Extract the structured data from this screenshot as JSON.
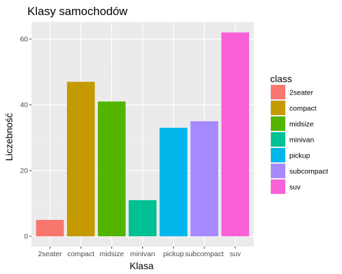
{
  "chart_data": {
    "type": "bar",
    "title": "Klasy samochodów",
    "xlabel": "Klasa",
    "ylabel": "Liczebność",
    "categories": [
      "2seater",
      "compact",
      "midsize",
      "minivan",
      "pickup",
      "subcompact",
      "suv"
    ],
    "values": [
      5,
      47,
      41,
      11,
      33,
      35,
      62
    ],
    "colors": [
      "#F8766D",
      "#C49A00",
      "#53B400",
      "#00C094",
      "#00B6EB",
      "#A58AFF",
      "#FB61D7"
    ],
    "ylim": [
      0,
      65
    ],
    "yticks": [
      0,
      20,
      40,
      60
    ],
    "grid": true,
    "legend": {
      "title": "class",
      "placement": "right",
      "entries": [
        "2seater",
        "compact",
        "midsize",
        "minivan",
        "pickup",
        "subcompact",
        "suv"
      ]
    }
  }
}
